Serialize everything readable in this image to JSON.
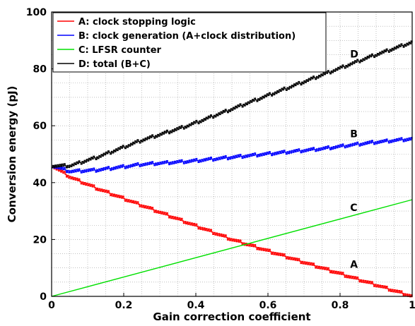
{
  "chart_data": {
    "type": "line",
    "title": "",
    "xlabel": "Gain correction coefficient",
    "ylabel": "Conversion energy (pJ)",
    "xlim": [
      0,
      1
    ],
    "ylim": [
      0,
      100
    ],
    "x_ticks": [
      "0",
      "0.2",
      "0.4",
      "0.6",
      "0.8",
      "1"
    ],
    "y_ticks": [
      "0",
      "20",
      "40",
      "60",
      "80",
      "100"
    ],
    "grid": true,
    "legend_position": "top-left",
    "series": [
      {
        "name": "A: clock stopping logic",
        "label": "A",
        "color": "#ff0000",
        "x": [
          0,
          0.05,
          0.125,
          0.25,
          0.375,
          0.5,
          0.625,
          0.75,
          0.875,
          1
        ],
        "y": [
          46,
          42,
          38,
          32,
          26,
          20,
          15,
          10,
          5,
          0
        ]
      },
      {
        "name": "B: clock generation (A+clock distribution)",
        "label": "B",
        "color": "#0000ff",
        "x": [
          0,
          0.05,
          0.125,
          0.25,
          0.375,
          0.5,
          0.625,
          0.75,
          0.875,
          1
        ],
        "y": [
          46,
          44,
          44.5,
          46.5,
          47.5,
          49,
          50.5,
          52,
          54,
          55.5
        ]
      },
      {
        "name": "C: LFSR counter",
        "label": "C",
        "color": "#00e000",
        "x": [
          0,
          1
        ],
        "y": [
          0,
          34
        ]
      },
      {
        "name": "D: total (B+C)",
        "label": "D",
        "color": "#000000",
        "x": [
          0,
          0.05,
          0.125,
          0.25,
          0.375,
          0.5,
          0.625,
          0.75,
          0.875,
          1
        ],
        "y": [
          46,
          46,
          49,
          55,
          60,
          66,
          72,
          78,
          84,
          89.5
        ]
      }
    ],
    "annotations": [
      {
        "text": "D",
        "x": 0.82,
        "y": 84
      },
      {
        "text": "B",
        "x": 0.82,
        "y": 56
      },
      {
        "text": "C",
        "x": 0.82,
        "y": 30
      },
      {
        "text": "A",
        "x": 0.82,
        "y": 10
      }
    ]
  }
}
